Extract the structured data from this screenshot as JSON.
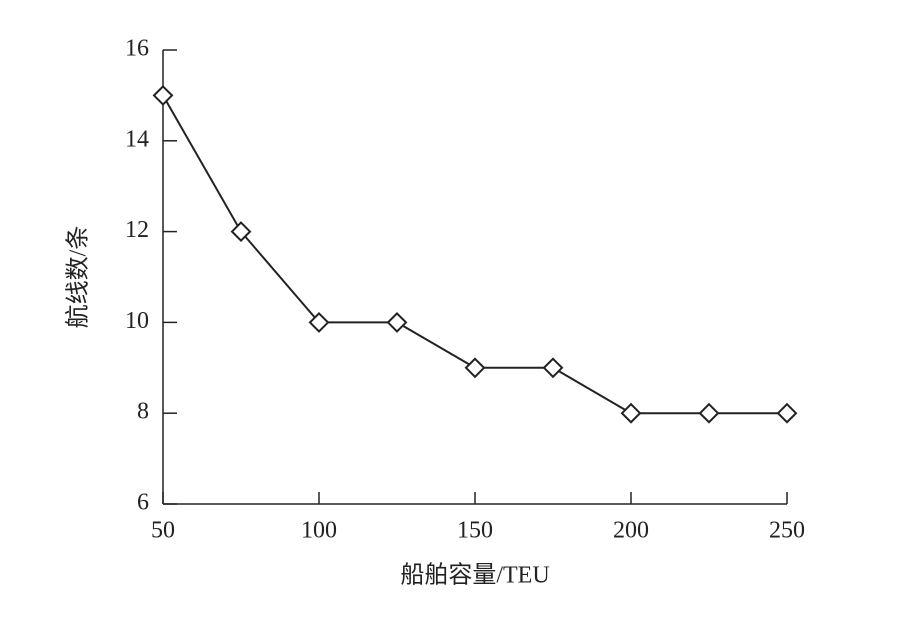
{
  "chart_data": {
    "type": "line",
    "x_label": "船舶容量/TEU",
    "y_label": "航线数/条",
    "x": [
      50,
      75,
      100,
      125,
      150,
      175,
      200,
      225,
      250
    ],
    "values": [
      15,
      12,
      10,
      10,
      9,
      9,
      8,
      8,
      8
    ],
    "color": "#222222",
    "marker": "diamond",
    "xlim": [
      50,
      250
    ],
    "ylim": [
      6,
      16
    ],
    "xticks": [
      50,
      100,
      150,
      200,
      250
    ],
    "yticks": [
      6,
      8,
      10,
      12,
      14,
      16
    ],
    "grid": false
  }
}
